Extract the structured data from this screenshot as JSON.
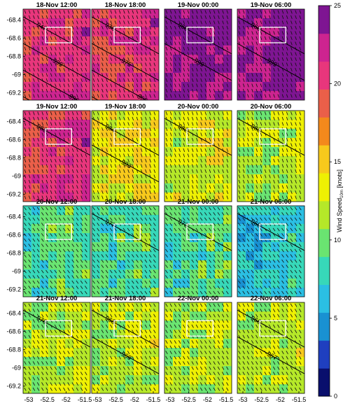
{
  "chart_data": {
    "type": "heatmap",
    "description_variable": "10 m wind speed with wind barbs and sea-level pressure isobars",
    "panel_titles": [
      "18-Nov 12:00",
      "18-Nov 18:00",
      "19-Nov 00:00",
      "19-Nov 06:00",
      "19-Nov 12:00",
      "19-Nov 18:00",
      "20-Nov 00:00",
      "20-Nov 06:00",
      "20-Nov 12:00",
      "20-Nov 18:00",
      "21-Nov 00:00",
      "21-Nov 06:00",
      "21-Nov 12:00",
      "21-Nov 18:00",
      "22-Nov 00:00",
      "22-Nov 06:00"
    ],
    "x_ticks": [
      "-53",
      "-52.5",
      "-52",
      "-51.5"
    ],
    "y_ticks": [
      "-68.4",
      "-68.6",
      "-68.8",
      "-69",
      "-69.2"
    ],
    "x_tick_values": [
      -53,
      -52.5,
      -52,
      -51.5
    ],
    "y_tick_values": [
      -68.4,
      -68.6,
      -68.8,
      -69,
      -69.2
    ],
    "xlim": [
      -53.15,
      -51.35
    ],
    "ylim": [
      -69.28,
      -68.28
    ],
    "colorbar": {
      "label": "Wind Speed",
      "label_subscript": "10m",
      "label_unit": "[knots]",
      "ticks": [
        "0",
        "5",
        "10",
        "15",
        "20",
        "25"
      ],
      "range": [
        0,
        25
      ],
      "levels": 13,
      "colors": [
        "#090f6d",
        "#1f3fbf",
        "#1991d2",
        "#2bbfe3",
        "#37d8b9",
        "#6ae471",
        "#b5e829",
        "#eef003",
        "#f7c91c",
        "#f3891c",
        "#ea5f49",
        "#e8367c",
        "#cd2490",
        "#7e1592"
      ]
    },
    "isobar_labels": [
      [
        "947",
        "999",
        "996",
        "990"
      ],
      [
        "936",
        "975",
        "969",
        "966"
      ],
      [
        "960",
        "999"
      ],
      [
        "960",
        "999"
      ],
      [
        "983"
      ],
      [
        "984",
        "983"
      ],
      [
        "982"
      ],
      [
        "983"
      ],
      [],
      [
        "977"
      ],
      [
        "973"
      ],
      [
        "969"
      ],
      [
        "970"
      ],
      [
        "968",
        "969"
      ],
      [],
      [
        "966",
        "967"
      ]
    ],
    "panel_mean_speed_knots": [
      21,
      21,
      24,
      24,
      21,
      14,
      13,
      12,
      9,
      9,
      9,
      7,
      12,
      12,
      12,
      12
    ]
  }
}
